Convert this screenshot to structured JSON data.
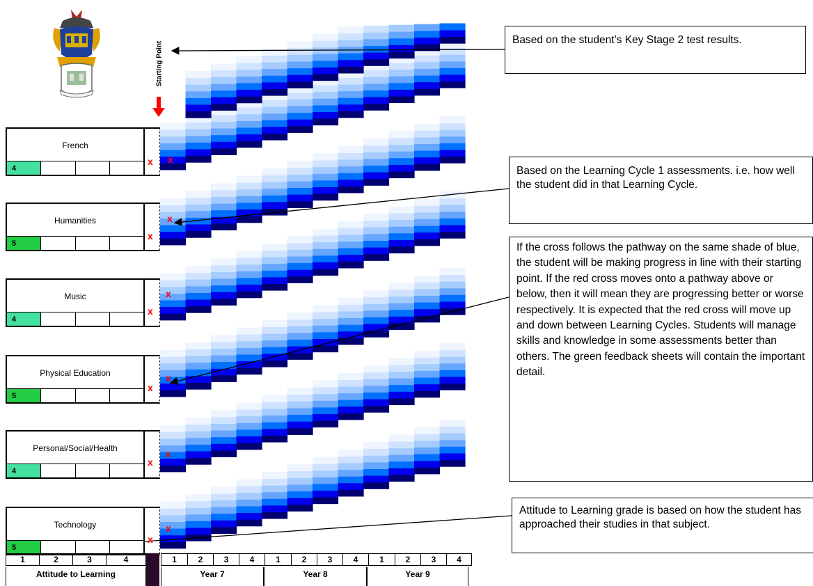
{
  "start_label": "Starting Point",
  "subjects": [
    {
      "name": "French",
      "grade": "4",
      "grade_color": "#44e0a0"
    },
    {
      "name": "Humanities",
      "grade": "5",
      "grade_color": "#22cc44"
    },
    {
      "name": "Music",
      "grade": "4",
      "grade_color": "#44e0a0"
    },
    {
      "name": "Physical Education",
      "grade": "5",
      "grade_color": "#22cc44"
    },
    {
      "name": "Personal/Social/Health",
      "grade": "4",
      "grade_color": "#44e0a0"
    },
    {
      "name": "Technology",
      "grade": "5",
      "grade_color": "#22cc44"
    }
  ],
  "cross_symbol": "x",
  "callouts": {
    "starting_point": "Based on the student’s Key Stage 2 test results.",
    "learning_cycle": "Based on the Learning Cycle 1 assessments. i.e. how well the student did in that Learning Cycle.",
    "pathway": "If the cross follows the pathway on the same shade of blue, the student will be making progress in line with their starting point. If the red cross moves onto a pathway above or below, then it will mean they are progressing better or worse respectively. It is expected that the red cross will move up and down between Learning Cycles. Students will manage skills and knowledge in some assessments better than others. The green feedback sheets will contain the important detail.",
    "attitude": "Attitude to Learning grade is based on how the student has approached their studies in that subject."
  },
  "axis": {
    "attitude_numbers": [
      "1",
      "2",
      "3",
      "4"
    ],
    "attitude_label": "Attitude to Learning",
    "year_numbers": [
      "1",
      "2",
      "3",
      "4",
      "1",
      "2",
      "3",
      "4",
      "1",
      "2",
      "3",
      "4"
    ],
    "years": [
      "Year 7",
      "Year 8",
      "Year 9"
    ]
  },
  "colors": {
    "cross": "#ff0000",
    "pathway_shades": [
      "#eef5ff",
      "#cfe3ff",
      "#a6cbff",
      "#66a6ff",
      "#0070ff",
      "#0000ee",
      "#000070"
    ],
    "divider": "#2a0a2a"
  }
}
